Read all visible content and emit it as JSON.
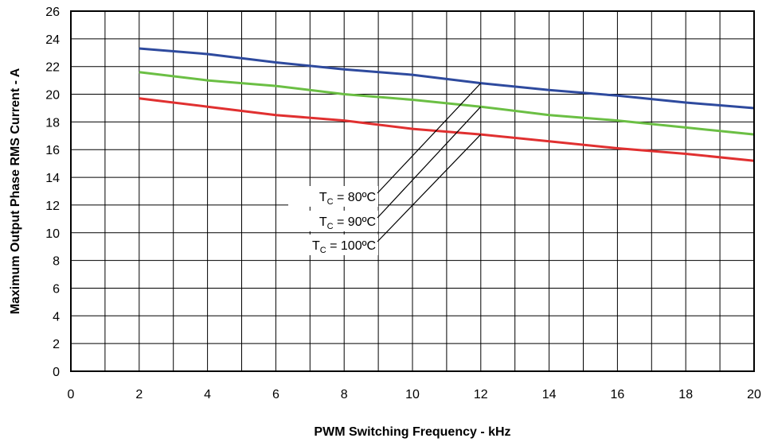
{
  "chart_data": {
    "type": "line",
    "title": "",
    "xlabel": "PWM Switching Frequency - kHz",
    "ylabel": "Maximum Output Phase RMS Current - A",
    "xlim": [
      0,
      20
    ],
    "ylim": [
      0,
      26
    ],
    "xticks": [
      0,
      2,
      4,
      6,
      8,
      10,
      12,
      14,
      16,
      18,
      20
    ],
    "yticks": [
      0,
      2,
      4,
      6,
      8,
      10,
      12,
      14,
      16,
      18,
      20,
      22,
      24,
      26
    ],
    "x_minor_step": 1,
    "grid": true,
    "legend": "none",
    "series": [
      {
        "name": "TC = 80ºC",
        "color": "#2e4a9e",
        "x": [
          2,
          4,
          6,
          8,
          10,
          12,
          14,
          16,
          18,
          20
        ],
        "y": [
          23.3,
          22.9,
          22.3,
          21.8,
          21.4,
          20.8,
          20.3,
          19.9,
          19.4,
          19.0
        ]
      },
      {
        "name": "TC = 90ºC",
        "color": "#6bbf44",
        "x": [
          2,
          4,
          6,
          8,
          10,
          12,
          14,
          16,
          18,
          20
        ],
        "y": [
          21.6,
          21.0,
          20.6,
          20.0,
          19.6,
          19.1,
          18.5,
          18.1,
          17.6,
          17.1
        ]
      },
      {
        "name": "TC = 100ºC",
        "color": "#e03030",
        "x": [
          2,
          4,
          6,
          8,
          10,
          12,
          14,
          16,
          18,
          20
        ],
        "y": [
          19.7,
          19.1,
          18.5,
          18.1,
          17.5,
          17.1,
          16.6,
          16.1,
          15.7,
          15.2
        ]
      }
    ],
    "annotations": [
      {
        "main": "T",
        "sub": "C",
        "rest": " = 80ºC",
        "target": [
          12,
          20.8
        ]
      },
      {
        "main": "T",
        "sub": "C",
        "rest": " = 90ºC",
        "target": [
          12,
          19.1
        ]
      },
      {
        "main": "T",
        "sub": "C",
        "rest": " = 100ºC",
        "target": [
          12,
          17.1
        ]
      }
    ]
  }
}
